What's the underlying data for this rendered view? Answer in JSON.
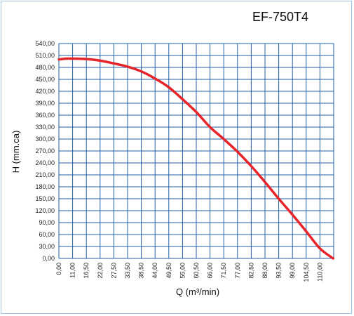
{
  "chart_data": {
    "type": "line",
    "title": "EF-750T4",
    "xlabel": "Q (m³/min)",
    "ylabel": "H (mm.ca)",
    "x_ticks": [
      "0,00",
      "11,00",
      "16,50",
      "22,00",
      "27,50",
      "33,50",
      "38,50",
      "44,00",
      "49,50",
      "55,00",
      "60,50",
      "66,00",
      "71,50",
      "77,00",
      "82,50",
      "88,00",
      "93,50",
      "99,00",
      "104,50",
      "110,00"
    ],
    "y_ticks": [
      "0,00",
      "30,00",
      "60,00",
      "90,00",
      "120,00",
      "150,00",
      "180,00",
      "210,00",
      "240,00",
      "270,00",
      "300,00",
      "330,00",
      "360,00",
      "390,00",
      "420,00",
      "450,00",
      "480,00",
      "510,00",
      "540,00"
    ],
    "ylim": [
      0,
      540
    ],
    "grid": true,
    "series": [
      {
        "color": "#e8242b",
        "x": [
          0.0,
          5.5,
          11.0,
          16.5,
          22.0,
          27.5,
          33.5,
          38.5,
          44.0,
          49.5,
          55.0,
          60.5,
          66.0,
          71.5,
          77.0,
          82.5,
          88.0,
          93.5,
          99.0,
          104.5,
          110.0,
          115.3
        ],
        "y": [
          500,
          502,
          502,
          501,
          497,
          490,
          482,
          470,
          452,
          430,
          400,
          368,
          330,
          300,
          268,
          232,
          192,
          150,
          110,
          68,
          25,
          0
        ]
      }
    ]
  },
  "colors": {
    "background": "#ffffff",
    "plot_background": "#ffffff",
    "grid": "#1f5fa8",
    "frame": "#9cc3e4",
    "line": "#e8242b"
  }
}
